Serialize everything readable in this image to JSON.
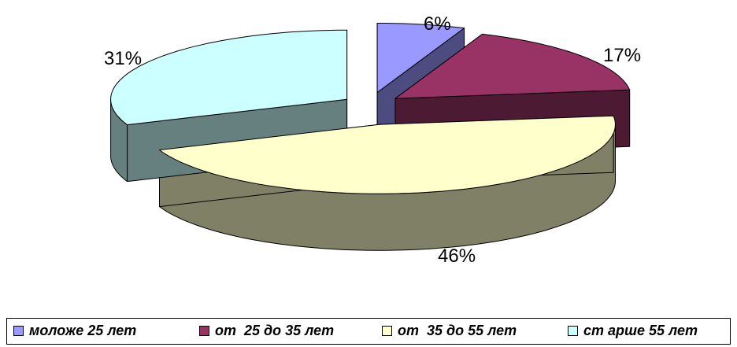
{
  "chart_data": {
    "type": "pie",
    "style": "3d-exploded",
    "categories": [
      "моложе 25 лет",
      "от  25 до 35 лет",
      "от  35 до 55 лет",
      "ст арше 55 лет"
    ],
    "values": [
      6,
      17,
      46,
      31
    ],
    "labels": [
      "6%",
      "17%",
      "46%",
      "31%"
    ],
    "colors": [
      "#9999ff",
      "#993366",
      "#ffffcc",
      "#ccffff"
    ],
    "side_colors": [
      "#4c4c80",
      "#4c1a33",
      "#808066",
      "#668080"
    ],
    "legend_position": "bottom"
  }
}
